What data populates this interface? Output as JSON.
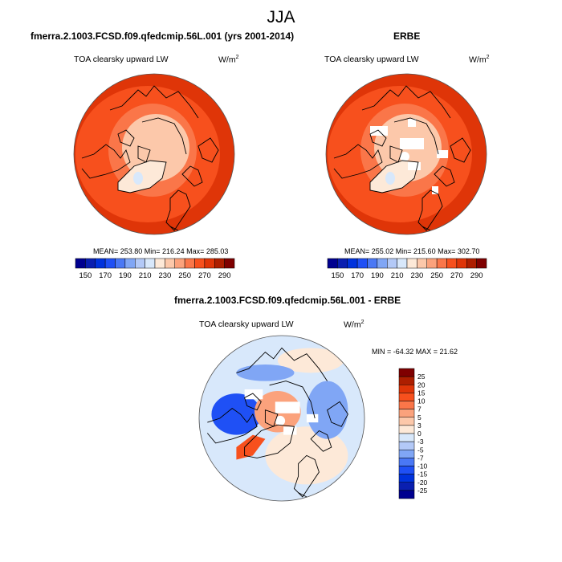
{
  "title": "JJA",
  "palette": [
    "#00008f",
    "#0a1fb0",
    "#0032dc",
    "#1f50f5",
    "#4a78f5",
    "#80a6f5",
    "#b3c9f7",
    "#d8e8fb",
    "#fde9d8",
    "#fcc8aa",
    "#fba27c",
    "#fa7649",
    "#f7501d",
    "#df3508",
    "#ad1e00",
    "#7f0000"
  ],
  "chart_data": [
    {
      "type": "heatmap",
      "projection": "north-polar-stereographic",
      "title": "fmerra.2.1003.FCSD.f09.qfedcmip.56L.001 (yrs 2001-2014)",
      "variable": "TOA clearsky upward LW",
      "units": "W/m2",
      "units_base": "W/m",
      "units_sup": "2",
      "stats_text": "MEAN= 253.80  Min= 216.24  Max= 285.03",
      "mean": 253.8,
      "min": 216.24,
      "max": 285.03,
      "colorbar": {
        "orientation": "horizontal",
        "levels": [
          150,
          160,
          170,
          180,
          190,
          200,
          210,
          220,
          230,
          240,
          250,
          260,
          270,
          280,
          290
        ],
        "tick_labels": [
          "150",
          "170",
          "190",
          "210",
          "230",
          "250",
          "270",
          "290"
        ]
      },
      "field_regions": [
        {
          "name": "outer-band",
          "value": 275
        },
        {
          "name": "mid-latitude",
          "value": 265
        },
        {
          "name": "arctic-ring",
          "value": 250
        },
        {
          "name": "central-arctic",
          "value": 235
        },
        {
          "name": "greenland",
          "value": 228
        },
        {
          "name": "greenland-summit",
          "value": 215
        }
      ]
    },
    {
      "type": "heatmap",
      "projection": "north-polar-stereographic",
      "title": "ERBE",
      "variable": "TOA clearsky upward LW",
      "units": "W/m2",
      "units_base": "W/m",
      "units_sup": "2",
      "stats_text": "MEAN= 255.02  Min= 215.60  Max= 302.70",
      "mean": 255.02,
      "min": 215.6,
      "max": 302.7,
      "colorbar": {
        "orientation": "horizontal",
        "levels": [
          150,
          160,
          170,
          180,
          190,
          200,
          210,
          220,
          230,
          240,
          250,
          260,
          270,
          280,
          290
        ],
        "tick_labels": [
          "150",
          "170",
          "190",
          "210",
          "230",
          "250",
          "270",
          "290"
        ]
      },
      "field_regions": [
        {
          "name": "outer-band",
          "value": 275
        },
        {
          "name": "mid-latitude",
          "value": 265
        },
        {
          "name": "arctic-ring",
          "value": 250
        },
        {
          "name": "central-arctic",
          "value": 238
        },
        {
          "name": "greenland",
          "value": 228
        },
        {
          "name": "greenland-summit",
          "value": 215
        },
        {
          "name": "missing-data",
          "value": null
        }
      ]
    },
    {
      "type": "heatmap",
      "projection": "north-polar-stereographic",
      "title": "fmerra.2.1003.FCSD.f09.qfedcmip.56L.001 - ERBE",
      "variable": "TOA clearsky upward LW",
      "units": "W/m2",
      "units_base": "W/m",
      "units_sup": "2",
      "stats_text": "MIN = -64.32 MAX =  21.62",
      "min": -64.32,
      "max": 21.62,
      "colorbar": {
        "orientation": "vertical",
        "levels": [
          -25,
          -20,
          -15,
          -10,
          -7,
          -5,
          -3,
          0,
          3,
          5,
          7,
          10,
          15,
          20,
          25
        ],
        "tick_labels": [
          "25",
          "20",
          "15",
          "10",
          "7",
          "5",
          "3",
          "0",
          "-3",
          "-5",
          "-7",
          "-10",
          "-15",
          "-20",
          "-25"
        ]
      },
      "field_regions": [
        {
          "name": "background",
          "value": -1
        },
        {
          "name": "central-arctic",
          "value": 6
        },
        {
          "name": "greenland-west",
          "value": 12
        },
        {
          "name": "canadian-archipelago",
          "value": -12
        },
        {
          "name": "siberia",
          "value": -6
        },
        {
          "name": "europe",
          "value": 2
        }
      ]
    }
  ]
}
